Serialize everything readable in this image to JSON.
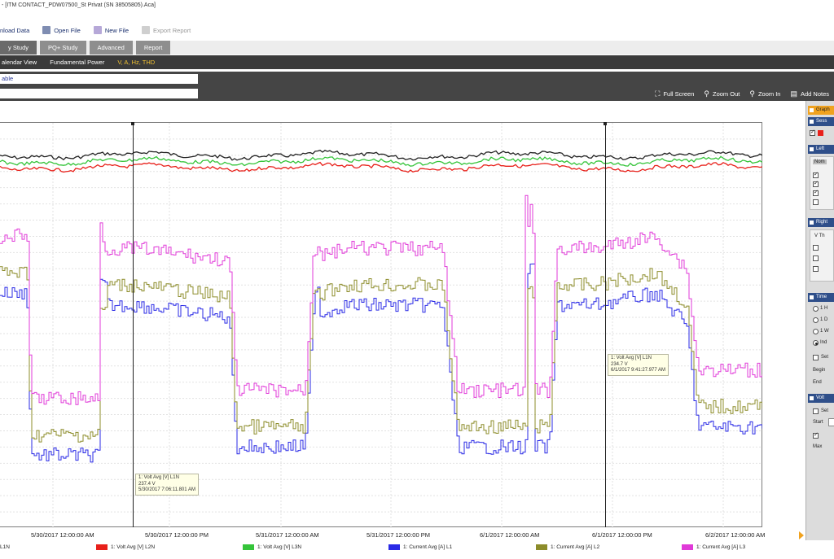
{
  "window": {
    "title": "- [ITM CONTACT_PDW07500_St Privat (SN 38505805).Aca]"
  },
  "toolbar": {
    "download": "nload Data",
    "open": "Open File",
    "new": "New File",
    "export": "Export Report"
  },
  "tabs": [
    "y Study",
    "PQ+ Study",
    "Advanced",
    "Report"
  ],
  "subtabs": [
    "alendar View",
    "Fundamental Power",
    "V, A, Hz, THD"
  ],
  "fields": {
    "top": "able",
    "bottom": ""
  },
  "view_tools": {
    "fullscreen": "Full Screen",
    "zoomout": "Zoom Out",
    "zoomin": "Zoom In",
    "notes": "Add Notes"
  },
  "x_ticks": [
    "5/30/2017 12:00:00 AM",
    "5/30/2017 12:00:00 PM",
    "5/31/2017 12:00:00 AM",
    "5/31/2017 12:00:00 PM",
    "6/1/2017 12:00:00 AM",
    "6/1/2017 12:00:00 PM",
    "6/2/2017 12:00:00 AM"
  ],
  "legend": [
    {
      "label": "L1N",
      "color": "#222222"
    },
    {
      "label": "1: Volt Avg [V] L2N",
      "color": "#e8201a"
    },
    {
      "label": "1: Volt Avg [V] L3N",
      "color": "#35c43a"
    },
    {
      "label": "1: Current Avg [A] L1",
      "color": "#2a2ae6"
    },
    {
      "label": "1: Current Avg [A] L2",
      "color": "#8c8c2a"
    },
    {
      "label": "1: Current Avg [A] L3",
      "color": "#e03ad8"
    }
  ],
  "tooltips": {
    "left": {
      "name": "1: Volt Avg [V] L1N",
      "value": "237.4 V",
      "time": "5/30/2017 7:06:11.801 AM"
    },
    "right": {
      "name": "1: Volt Avg [V] L1N",
      "value": "234.7 V",
      "time": "6/1/2017 9:41:27.977 AM"
    }
  },
  "right_panel": {
    "sections": [
      "Graph",
      "Sess",
      "Left",
      "Right",
      "Time",
      "Volt"
    ],
    "nom": "Nom",
    "v_th": "V Th",
    "time_opts": [
      "1 H",
      "1 D",
      "1 W",
      "Ind"
    ],
    "set1": "Set",
    "begin": "Begin",
    "end": "End",
    "set2": "Set",
    "start": "Start",
    "max": "Max"
  },
  "chart_data": {
    "type": "line",
    "x_range": [
      "5/29/2017 6:00 PM",
      "6/2/2017 12:30 AM"
    ],
    "x_ticks": [
      "5/30/2017 12:00:00 AM",
      "5/30/2017 12:00:00 PM",
      "5/31/2017 12:00:00 AM",
      "5/31/2017 12:00:00 PM",
      "6/1/2017 12:00:00 AM",
      "6/1/2017 12:00:00 PM",
      "6/2/2017 12:00:00 AM"
    ],
    "grid": true,
    "series_colors": [
      "#222222",
      "#e8201a",
      "#35c43a",
      "#2a2ae6",
      "#8c8c2a",
      "#e03ad8"
    ],
    "voltage_series": [
      {
        "name": "L1N",
        "level": 0.92
      },
      {
        "name": "1: Volt Avg [V] L2N",
        "level": 0.89
      },
      {
        "name": "1: Volt Avg [V] L3N",
        "level": 0.905
      }
    ],
    "current_profile_nodes": [
      [
        0.0,
        0.58
      ],
      [
        0.035,
        0.58
      ],
      [
        0.04,
        0.18
      ],
      [
        0.13,
        0.18
      ],
      [
        0.14,
        0.55
      ],
      [
        0.17,
        0.55
      ],
      [
        0.18,
        0.55
      ],
      [
        0.3,
        0.52
      ],
      [
        0.31,
        0.2
      ],
      [
        0.4,
        0.2
      ],
      [
        0.41,
        0.52
      ],
      [
        0.45,
        0.55
      ],
      [
        0.58,
        0.55
      ],
      [
        0.6,
        0.2
      ],
      [
        0.72,
        0.2
      ],
      [
        0.73,
        0.55
      ],
      [
        0.78,
        0.55
      ],
      [
        0.86,
        0.58
      ],
      [
        0.9,
        0.5
      ],
      [
        0.915,
        0.25
      ],
      [
        0.936,
        0.25
      ]
    ],
    "current_series": [
      {
        "name": "1: Current Avg [A] L1",
        "offset": 0.0
      },
      {
        "name": "1: Current Avg [A] L2",
        "offset": 0.05
      },
      {
        "name": "1: Current Avg [A] L3",
        "offset": 0.14
      }
    ],
    "spikes": [
      [
        0.135,
        0.78
      ],
      [
        0.415,
        0.78
      ],
      [
        0.695,
        0.82
      ]
    ]
  }
}
